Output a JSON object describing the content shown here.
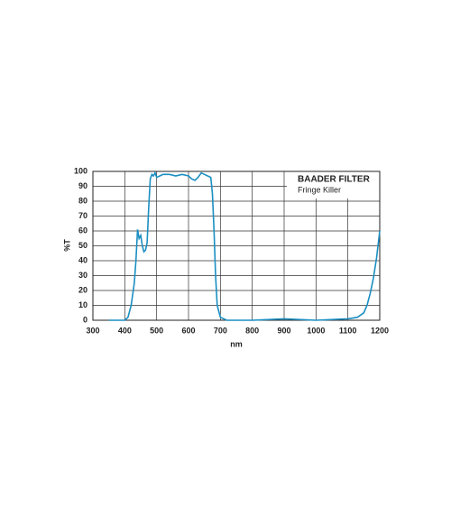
{
  "chart_data": {
    "type": "line",
    "title": "BAADER FILTER",
    "subtitle": "Fringe Killer",
    "x_label": "nm",
    "y_label": "%T",
    "x": [
      350,
      380,
      400,
      410,
      420,
      430,
      435,
      440,
      445,
      450,
      455,
      460,
      465,
      470,
      475,
      480,
      485,
      490,
      495,
      500,
      510,
      520,
      540,
      560,
      580,
      600,
      610,
      620,
      630,
      640,
      650,
      660,
      670,
      675,
      680,
      685,
      690,
      700,
      720,
      800,
      900,
      1000,
      1100,
      1130,
      1150,
      1160,
      1170,
      1180,
      1190,
      1200
    ],
    "series": [
      {
        "color": "#1b8fc2",
        "values": [
          0,
          0,
          0,
          2,
          10,
          25,
          40,
          61,
          55,
          57,
          50,
          46,
          47,
          52,
          75,
          95,
          98,
          97,
          99,
          96,
          97,
          98,
          98,
          97,
          98,
          97,
          95,
          94,
          96,
          99,
          98,
          97,
          96,
          85,
          60,
          30,
          10,
          2,
          0,
          0,
          1,
          0,
          1,
          2,
          5,
          10,
          18,
          28,
          42,
          60
        ]
      }
    ],
    "xlim": [
      300,
      1200
    ],
    "xticks": [
      300,
      400,
      500,
      600,
      700,
      800,
      900,
      1000,
      1100,
      1200
    ],
    "ylim": [
      0,
      100
    ],
    "yticks": [
      0,
      10,
      20,
      30,
      40,
      50,
      60,
      70,
      80,
      90,
      100
    ],
    "grid": true
  }
}
